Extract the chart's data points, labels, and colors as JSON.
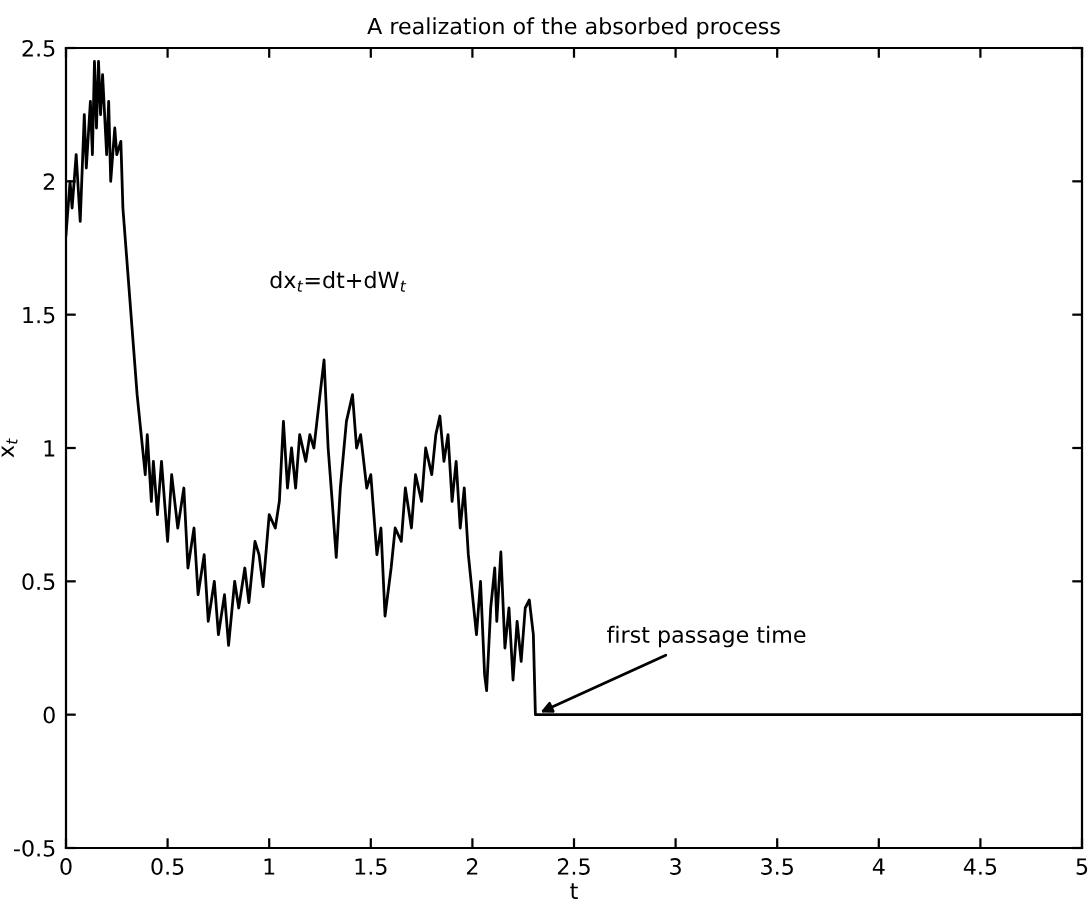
{
  "chart_data": {
    "type": "line",
    "title": "A realization of the absorbed process",
    "xlabel": "t",
    "ylabel": "x$_{t}$",
    "x": [
      0,
      0.02,
      0.03,
      0.05,
      0.07,
      0.09,
      0.1,
      0.12,
      0.13,
      0.14,
      0.15,
      0.16,
      0.17,
      0.18,
      0.2,
      0.21,
      0.22,
      0.24,
      0.25,
      0.27,
      0.28,
      0.3,
      0.33,
      0.35,
      0.37,
      0.39,
      0.4,
      0.42,
      0.43,
      0.45,
      0.47,
      0.5,
      0.52,
      0.55,
      0.58,
      0.6,
      0.63,
      0.65,
      0.68,
      0.7,
      0.73,
      0.75,
      0.78,
      0.8,
      0.83,
      0.85,
      0.88,
      0.9,
      0.93,
      0.95,
      0.97,
      1.0,
      1.03,
      1.05,
      1.07,
      1.09,
      1.11,
      1.13,
      1.15,
      1.18,
      1.2,
      1.22,
      1.25,
      1.27,
      1.29,
      1.31,
      1.33,
      1.35,
      1.38,
      1.41,
      1.43,
      1.45,
      1.48,
      1.5,
      1.53,
      1.55,
      1.57,
      1.6,
      1.62,
      1.65,
      1.67,
      1.7,
      1.72,
      1.75,
      1.77,
      1.8,
      1.82,
      1.84,
      1.86,
      1.88,
      1.9,
      1.92,
      1.94,
      1.96,
      1.98,
      2.0,
      2.02,
      2.04,
      2.06,
      2.07,
      2.09,
      2.11,
      2.12,
      2.14,
      2.16,
      2.18,
      2.2,
      2.22,
      2.24,
      2.26,
      2.28,
      2.3,
      2.31,
      5
    ],
    "values": [
      1.8,
      2.0,
      1.9,
      2.1,
      1.85,
      2.25,
      2.05,
      2.3,
      2.1,
      2.45,
      2.2,
      2.45,
      2.25,
      2.4,
      2.1,
      2.3,
      2.0,
      2.2,
      2.1,
      2.15,
      1.9,
      1.7,
      1.4,
      1.2,
      1.05,
      0.9,
      1.05,
      0.8,
      0.95,
      0.75,
      0.95,
      0.65,
      0.9,
      0.7,
      0.85,
      0.55,
      0.7,
      0.45,
      0.6,
      0.35,
      0.5,
      0.3,
      0.45,
      0.26,
      0.5,
      0.4,
      0.55,
      0.42,
      0.65,
      0.6,
      0.48,
      0.75,
      0.7,
      0.8,
      1.1,
      0.85,
      1.0,
      0.85,
      1.05,
      0.95,
      1.05,
      1.0,
      1.2,
      1.33,
      1.0,
      0.8,
      0.59,
      0.85,
      1.1,
      1.2,
      1.0,
      1.05,
      0.85,
      0.9,
      0.6,
      0.7,
      0.37,
      0.55,
      0.7,
      0.65,
      0.85,
      0.7,
      0.9,
      0.8,
      1.0,
      0.9,
      1.05,
      1.12,
      0.95,
      1.05,
      0.8,
      0.95,
      0.7,
      0.85,
      0.6,
      0.45,
      0.3,
      0.5,
      0.15,
      0.09,
      0.4,
      0.55,
      0.35,
      0.61,
      0.25,
      0.4,
      0.13,
      0.35,
      0.2,
      0.4,
      0.43,
      0.3,
      0.0,
      0.0
    ],
    "color": "#000000",
    "xlim": [
      0,
      5
    ],
    "ylim": [
      -0.5,
      2.5
    ],
    "xticks": [
      0,
      0.5,
      1,
      1.5,
      2,
      2.5,
      3,
      3.5,
      4,
      4.5,
      5
    ],
    "yticks": [
      -0.5,
      0,
      0.5,
      1,
      1.5,
      2,
      2.5
    ],
    "grid": false,
    "annotations": [
      "dx$_{t}$=dt+dW$_{t}$",
      {
        "text": "first passage time",
        "x": 2.31,
        "y": 0
      }
    ]
  }
}
